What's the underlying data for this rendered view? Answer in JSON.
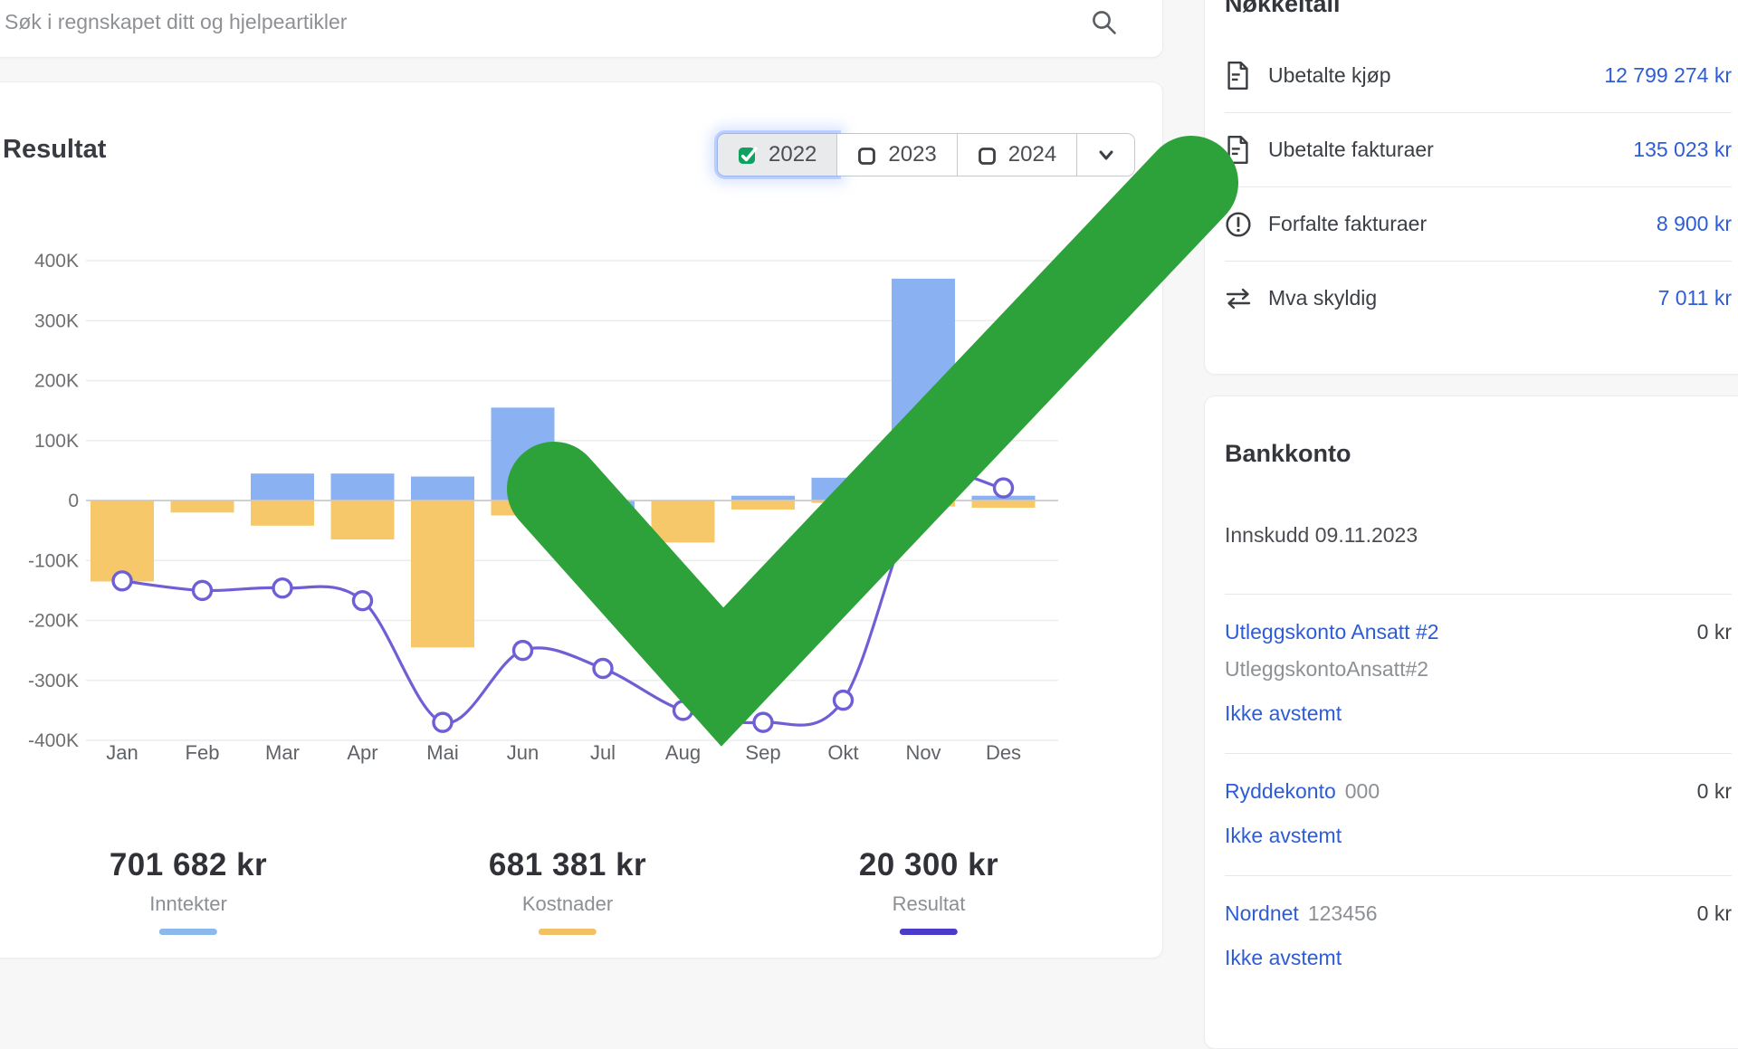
{
  "search": {
    "placeholder": "Søk i regnskapet ditt og hjelpeartikler"
  },
  "result_card": {
    "title": "Resultat",
    "year_buttons": [
      {
        "label": "2022",
        "checked": true
      },
      {
        "label": "2023",
        "checked": false
      },
      {
        "label": "2024",
        "checked": false
      }
    ],
    "summary": [
      {
        "value": "701 682 kr",
        "label": "Inntekter",
        "color": "#8bb9ec"
      },
      {
        "value": "681 381 kr",
        "label": "Kostnader",
        "color": "#f0c263"
      },
      {
        "value": "20 300 kr",
        "label": "Resultat",
        "color": "#4b3bc9"
      }
    ]
  },
  "chart_data": {
    "type": "bar",
    "title": "Resultat 2022",
    "categories": [
      "Jan",
      "Feb",
      "Mar",
      "Apr",
      "Mai",
      "Jun",
      "Jul",
      "Aug",
      "Sep",
      "Okt",
      "Nov",
      "Des"
    ],
    "series": [
      {
        "name": "Inntekter",
        "type": "bar",
        "color": "#8ab1f1",
        "values": [
          0,
          0,
          45000,
          45000,
          40000,
          155000,
          -35000,
          0,
          8000,
          38000,
          370000,
          8000
        ]
      },
      {
        "name": "Kostnader",
        "type": "bar",
        "color": "#f7c869",
        "values": [
          -135000,
          -20000,
          -42000,
          -65000,
          -245000,
          -25000,
          0,
          -70000,
          -15000,
          -4000,
          -10000,
          -12000
        ]
      },
      {
        "name": "Resultat",
        "type": "line",
        "color": "#6e5fd6",
        "values": [
          -134000,
          -150000,
          -146000,
          -167000,
          -370000,
          -250000,
          -280000,
          -350000,
          -370000,
          -333000,
          15000,
          21000
        ]
      }
    ],
    "ylim": [
      -400000,
      400000
    ],
    "ytick_step": 100000,
    "ytick_labels": [
      "400K",
      "300K",
      "200K",
      "100K",
      "0",
      "-100K",
      "-200K",
      "-300K",
      "-400K"
    ],
    "grid": true,
    "legend": "none"
  },
  "key_figures": {
    "title": "Nøkkeltall",
    "items": [
      {
        "icon": "document-icon",
        "label": "Ubetalte kjøp",
        "value": "12 799 274 kr"
      },
      {
        "icon": "document-icon",
        "label": "Ubetalte fakturaer",
        "value": "135 023 kr"
      },
      {
        "icon": "alert-circle-icon",
        "label": "Forfalte fakturaer",
        "value": "8 900 kr"
      },
      {
        "icon": "transfer-arrows-icon",
        "label": "Mva skyldig",
        "value": "7 011 kr"
      }
    ]
  },
  "bank_accounts": {
    "title": "Bankkonto",
    "subtitle": "Innskudd 09.11.2023",
    "accounts": [
      {
        "name": "Utleggskonto Ansatt #2",
        "number": "",
        "sub": "UtleggskontoAnsatt#2",
        "amount": "0 kr",
        "status": "Ikke avstemt"
      },
      {
        "name": "Ryddekonto",
        "number": "000",
        "sub": "",
        "amount": "0 kr",
        "status": "Ikke avstemt"
      },
      {
        "name": "Nordnet",
        "number": "123456",
        "sub": "",
        "amount": "0 kr",
        "status": "Ikke avstemt"
      }
    ]
  },
  "overlay": {
    "checkmark_color": "#2ea23a"
  }
}
